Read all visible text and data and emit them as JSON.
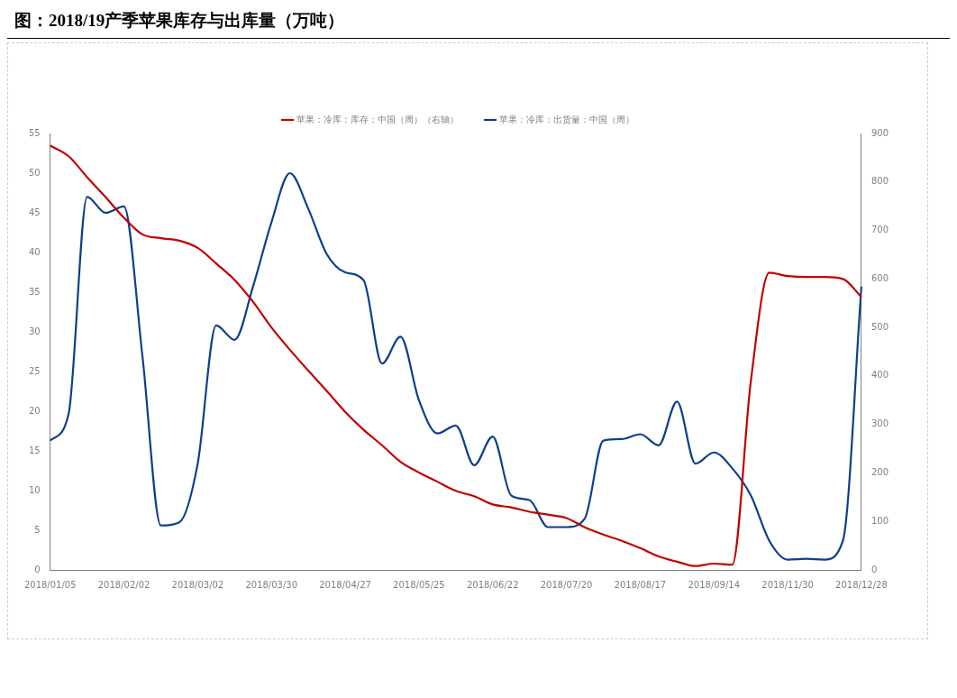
{
  "chart_data": {
    "type": "line",
    "title": "图：2018/19产季苹果库存与出库量（万吨）",
    "categories": [
      "2018/01/05",
      null,
      null,
      null,
      "2018/02/02",
      null,
      null,
      null,
      "2018/03/02",
      null,
      null,
      null,
      "2018/03/30",
      null,
      null,
      null,
      "2018/04/27",
      null,
      null,
      null,
      "2018/05/25",
      null,
      null,
      null,
      "2018/06/22",
      null,
      null,
      null,
      "2018/07/20",
      null,
      null,
      null,
      "2018/08/17",
      null,
      null,
      null,
      "2018/09/14",
      null,
      null,
      null,
      "2018/11/30",
      null,
      null,
      null,
      "2018/12/28"
    ],
    "series": [
      {
        "name": "苹果：冷库：库存：中国（周）（右轴）",
        "color": "#c00000",
        "axis": "y2",
        "values": [
          875,
          853,
          810,
          769,
          726,
          692,
          684,
          679,
          664,
          632,
          598,
          553,
          500,
          454,
          411,
          369,
          326,
          289,
          257,
          223,
          201,
          182,
          163,
          152,
          135,
          129,
          120,
          114,
          107,
          88,
          73,
          60,
          45,
          28,
          17,
          8,
          13,
          11,
          388,
          613,
          606,
          604,
          604,
          600,
          563
        ]
      },
      {
        "name": "苹果：冷库：出货量：中国（周）",
        "color": "#0e3f8c",
        "values": [
          16.3,
          19.7,
          47,
          45,
          45.8,
          27,
          5.6,
          6,
          13.4,
          30.8,
          29,
          35.7,
          43.8,
          50,
          45.5,
          39.8,
          37.5,
          36.5,
          26,
          29.4,
          21.4,
          17.2,
          18.2,
          13.2,
          16.8,
          9.4,
          8.8,
          5.4,
          5.4,
          6.5,
          16.3,
          16.5,
          17.1,
          15.7,
          21.2,
          13.4,
          14.8,
          12.8,
          9.4,
          3.7,
          1.3,
          1.4,
          1.3,
          3.7,
          35.7
        ]
      }
    ],
    "ylim": [
      0,
      55
    ],
    "yticks": [
      0,
      5,
      10,
      15,
      20,
      25,
      30,
      35,
      40,
      45,
      50,
      55
    ],
    "y2lim": [
      0,
      900
    ],
    "y2ticks": [
      0,
      100,
      200,
      300,
      400,
      500,
      600,
      700,
      800,
      900
    ],
    "grid": false,
    "legend": "top",
    "marker": "none",
    "line_style": "solid"
  }
}
